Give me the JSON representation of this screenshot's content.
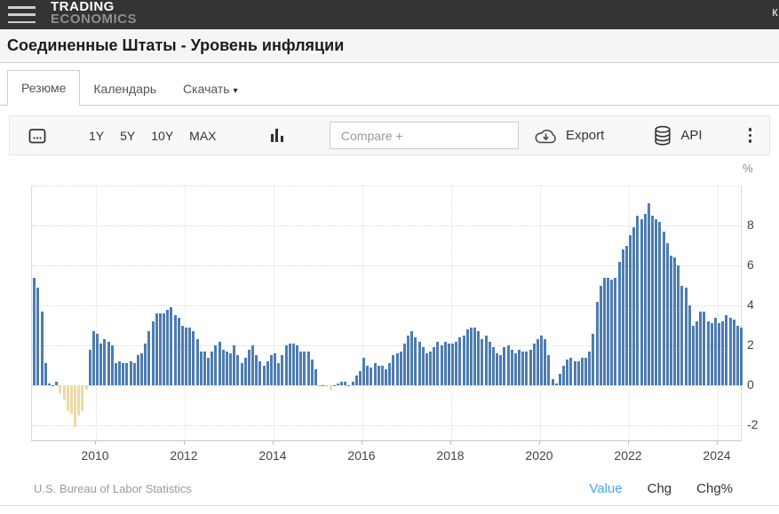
{
  "header": {
    "logo_line1": "TRADING",
    "logo_line2": "ECONOMICS",
    "partial_right_text": "к",
    "bg_color": "#333333"
  },
  "page": {
    "title": "Соединенные Штаты - Уровень инфляции"
  },
  "tabs": [
    {
      "label": "Резюме",
      "active": true
    },
    {
      "label": "Календарь",
      "active": false
    },
    {
      "label": "Скачать",
      "active": false,
      "has_dropdown": true,
      "caret": "▾"
    }
  ],
  "toolbar": {
    "ranges": [
      "1Y",
      "5Y",
      "10Y",
      "MAX"
    ],
    "compare_placeholder": "Compare +",
    "export_label": "Export",
    "api_label": "API"
  },
  "chart_data": {
    "type": "bar",
    "title": "Соединенные Штаты - Уровень инфляции",
    "unit": "%",
    "x_start": "2008-08",
    "frequency": "monthly",
    "x_tick_labels": [
      "2010",
      "2012",
      "2014",
      "2016",
      "2018",
      "2020",
      "2022",
      "2024"
    ],
    "y_ticks": [
      8,
      6,
      4,
      2,
      0,
      -2
    ],
    "ylim": [
      -2.8,
      10
    ],
    "grid": "dotted",
    "positive_color": "#4d7cb3",
    "negative_color": "#ecd9a6",
    "values": [
      5.4,
      4.9,
      3.7,
      1.1,
      0.1,
      0.0,
      0.2,
      -0.4,
      -0.7,
      -1.3,
      -1.4,
      -2.1,
      -1.5,
      -1.3,
      -0.2,
      1.8,
      2.7,
      2.6,
      2.1,
      2.3,
      2.2,
      2.0,
      1.1,
      1.2,
      1.1,
      1.1,
      1.2,
      1.1,
      1.5,
      1.6,
      2.1,
      2.7,
      3.2,
      3.6,
      3.6,
      3.6,
      3.8,
      3.9,
      3.5,
      3.4,
      3.0,
      2.9,
      2.9,
      2.7,
      2.3,
      1.7,
      1.7,
      1.4,
      1.7,
      2.0,
      2.2,
      1.8,
      1.7,
      1.6,
      2.0,
      1.5,
      1.1,
      1.4,
      1.8,
      2.0,
      1.5,
      1.2,
      1.0,
      1.2,
      1.5,
      1.6,
      1.1,
      1.5,
      2.0,
      2.1,
      2.1,
      2.0,
      1.7,
      1.7,
      1.7,
      1.3,
      0.8,
      -0.1,
      0.0,
      -0.1,
      -0.2,
      0.0,
      0.1,
      0.2,
      0.2,
      0.0,
      0.2,
      0.5,
      0.7,
      1.4,
      1.0,
      0.9,
      1.1,
      1.0,
      1.0,
      0.8,
      1.1,
      1.5,
      1.6,
      1.7,
      2.1,
      2.5,
      2.7,
      2.4,
      2.2,
      1.9,
      1.6,
      1.7,
      1.9,
      2.2,
      2.0,
      2.2,
      2.1,
      2.1,
      2.2,
      2.4,
      2.5,
      2.8,
      2.9,
      2.9,
      2.7,
      2.3,
      2.5,
      2.2,
      1.9,
      1.6,
      1.5,
      1.9,
      2.0,
      1.8,
      1.6,
      1.8,
      1.7,
      1.7,
      1.8,
      2.1,
      2.3,
      2.5,
      2.3,
      1.5,
      0.3,
      0.1,
      0.6,
      1.0,
      1.3,
      1.4,
      1.2,
      1.2,
      1.4,
      1.4,
      1.7,
      2.6,
      4.2,
      5.0,
      5.4,
      5.4,
      5.3,
      5.4,
      6.2,
      6.8,
      7.0,
      7.5,
      7.9,
      8.5,
      8.3,
      8.6,
      9.1,
      8.5,
      8.3,
      8.2,
      7.7,
      7.1,
      6.5,
      6.4,
      6.0,
      5.0,
      4.9,
      4.0,
      3.0,
      3.2,
      3.7,
      3.7,
      3.2,
      3.1,
      3.4,
      3.1,
      3.2,
      3.5,
      3.4,
      3.3,
      3.0,
      2.9
    ],
    "source": "U.S. Bureau of Labor Statistics",
    "legend_position": "none"
  },
  "footer": {
    "source": "U.S. Bureau of Labor Statistics",
    "links": [
      {
        "label": "Value",
        "active": true
      },
      {
        "label": "Chg",
        "active": false
      },
      {
        "label": "Chg%",
        "active": false
      }
    ]
  },
  "colors": {
    "accent_blue": "#4da3f2",
    "bar_positive": "#4d7cb3",
    "bar_negative": "#ecd9a6",
    "header_bg": "#333333"
  }
}
